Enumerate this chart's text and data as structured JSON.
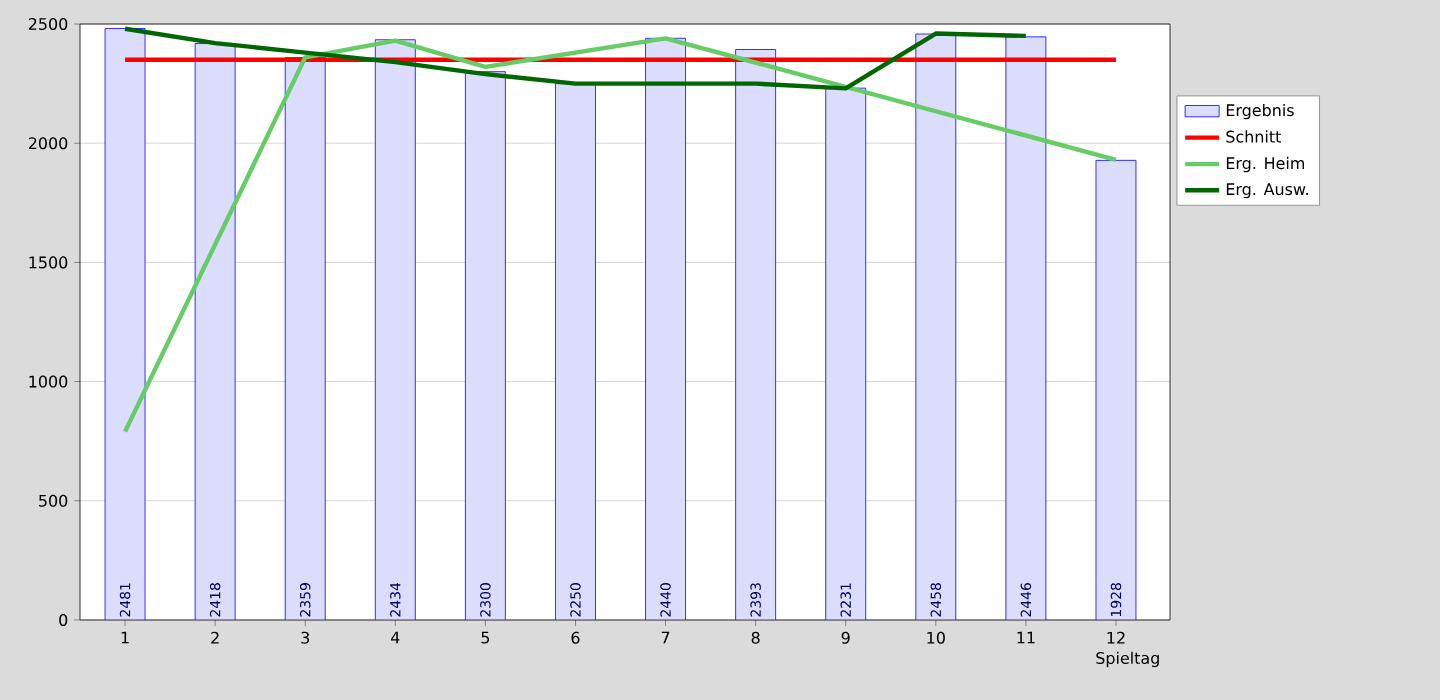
{
  "chart_data": {
    "type": "bar",
    "xlabel": "Spieltag",
    "x": [
      1,
      2,
      3,
      4,
      5,
      6,
      7,
      8,
      9,
      10,
      11,
      12
    ],
    "xlim": [
      0.5,
      12.6
    ],
    "xticks": [
      1,
      2,
      3,
      4,
      5,
      6,
      7,
      8,
      9,
      10,
      11,
      12
    ],
    "ylim": [
      0,
      2500
    ],
    "yticks": [
      0,
      500,
      1000,
      1500,
      2000,
      2500
    ],
    "grid": "y",
    "legend": "right",
    "series": [
      {
        "name": "Ergebnis",
        "color": "#dcdcfc",
        "values": [
          2481,
          2418,
          2359,
          2434,
          2300,
          2250,
          2440,
          2393,
          2231,
          2458,
          2446,
          1928
        ],
        "value_labels": [
          "2481",
          "2418",
          "2359",
          "2434",
          "2300",
          "2250",
          "2440",
          "2393",
          "2231",
          "2458",
          "2446",
          "1928"
        ]
      },
      {
        "name": "Schnitt",
        "type": "line",
        "color": "#ff0000",
        "x": [
          1,
          12
        ],
        "values": [
          2350,
          2350
        ]
      },
      {
        "name": "Erg. Heim",
        "type": "line",
        "color": "#66cc66",
        "x": [
          1,
          3,
          4,
          5,
          7,
          12
        ],
        "values": [
          790,
          2360,
          2430,
          2320,
          2440,
          1930
        ]
      },
      {
        "name": "Erg. Ausw.",
        "type": "line",
        "color": "#006600",
        "x": [
          1,
          2,
          3,
          4,
          5,
          6,
          7,
          8,
          9,
          10,
          11
        ],
        "values": [
          2480,
          2420,
          2380,
          2340,
          2290,
          2250,
          2250,
          2250,
          2230,
          2460,
          2450
        ]
      }
    ]
  }
}
